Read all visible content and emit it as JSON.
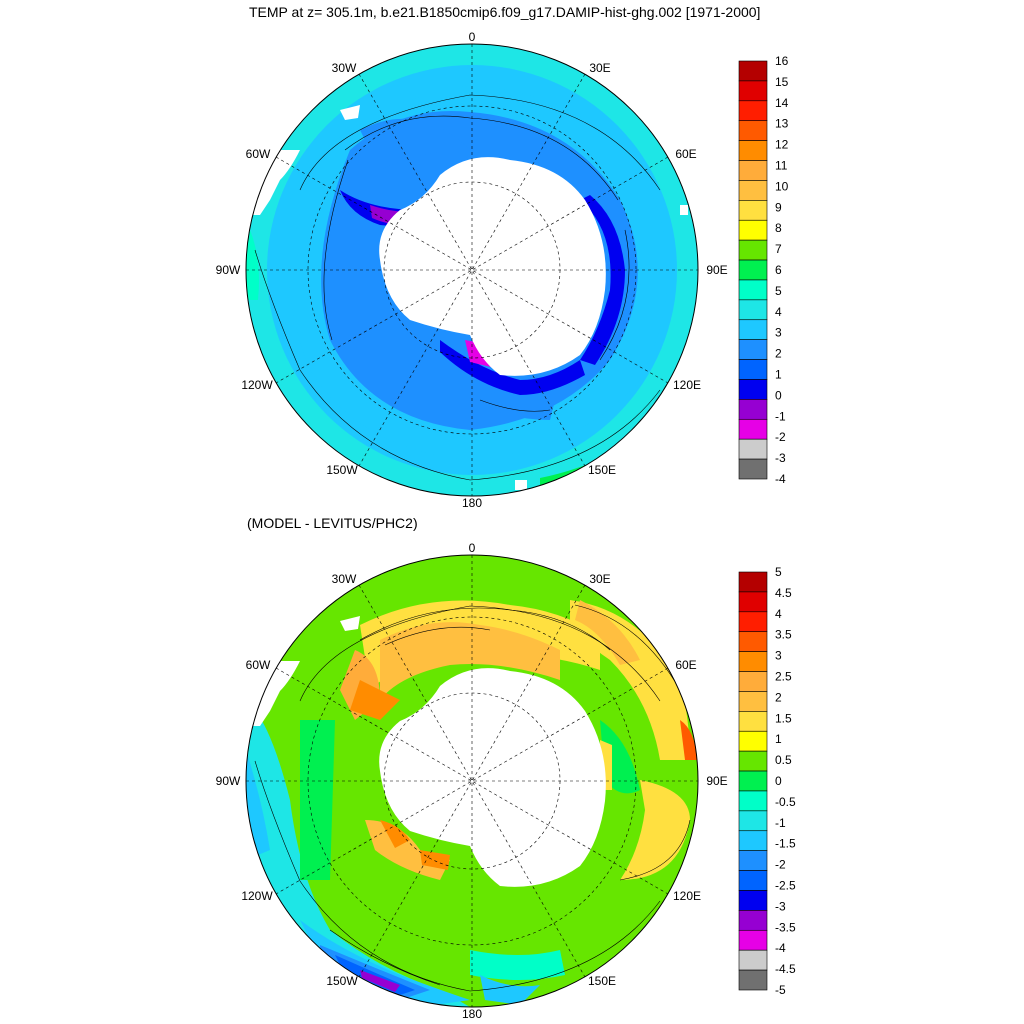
{
  "top_panel": {
    "title": "TEMP at z= 305.1m, b.e21.B1850cmip6.f09_g17.DAMIP-hist-ghg.002 [1971-2000]",
    "lon_labels": [
      "0",
      "30E",
      "60E",
      "90E",
      "120E",
      "150E",
      "180",
      "150W",
      "120W",
      "90W",
      "60W",
      "30W"
    ],
    "colorbar": {
      "labels": [
        "16",
        "15",
        "14",
        "13",
        "12",
        "11",
        "10",
        "9",
        "8",
        "7",
        "6",
        "5",
        "4",
        "3",
        "2",
        "1",
        "0",
        "-1",
        "-2",
        "-3",
        "-4"
      ],
      "colors": [
        "#b40000",
        "#e00000",
        "#ff1e00",
        "#ff5a00",
        "#ff8c00",
        "#ffac3a",
        "#ffbf40",
        "#ffe040",
        "#ffff00",
        "#66e600",
        "#00f050",
        "#00ffc8",
        "#1ee6e6",
        "#1ec8ff",
        "#1e90ff",
        "#0064ff",
        "#0000f0",
        "#9600d2",
        "#e600e6",
        "#cccccc",
        "#707070"
      ]
    }
  },
  "bottom_panel": {
    "title": "(MODEL - LEVITUS/PHC2)",
    "lon_labels": [
      "0",
      "30E",
      "60E",
      "90E",
      "120E",
      "150E",
      "180",
      "150W",
      "120W",
      "90W",
      "60W",
      "30W"
    ],
    "colorbar": {
      "labels": [
        "5",
        "4.5",
        "4",
        "3.5",
        "3",
        "2.5",
        "2",
        "1.5",
        "1",
        "0.5",
        "0",
        "-0.5",
        "-1",
        "-1.5",
        "-2",
        "-2.5",
        "-3",
        "-3.5",
        "-4",
        "-4.5",
        "-5"
      ],
      "colors": [
        "#b40000",
        "#e00000",
        "#ff1e00",
        "#ff5a00",
        "#ff8c00",
        "#ffac3a",
        "#ffbf40",
        "#ffe040",
        "#ffff00",
        "#66e600",
        "#00f050",
        "#00ffc8",
        "#1ee6e6",
        "#1ec8ff",
        "#1e90ff",
        "#0064ff",
        "#0000f0",
        "#9600d2",
        "#e600e6",
        "#cccccc",
        "#707070"
      ]
    }
  }
}
